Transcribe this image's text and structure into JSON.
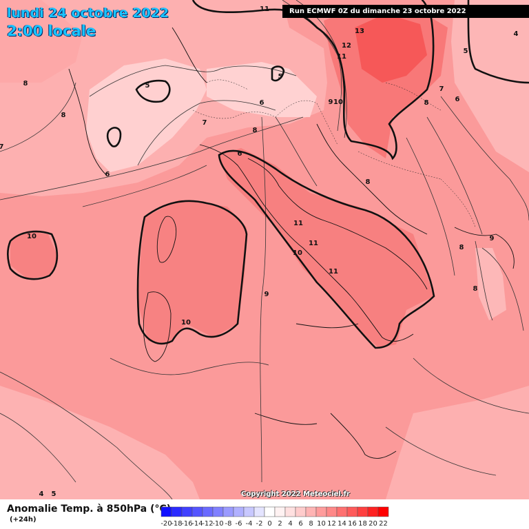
{
  "header": {
    "date": "lundi 24 octobre 2022",
    "time": "2:00 locale",
    "run": "Run ECMWF 0Z du dimanche 23 octobre 2022"
  },
  "footer": {
    "parameter": "Anomalie Temp. à 850hPa (°C)",
    "range": "(+24h)",
    "copyright": "Copyright 2022 Meteociel.fr"
  },
  "scale": {
    "ticks": [
      "-20",
      "-18",
      "-16",
      "-14",
      "-12",
      "-10",
      "-8",
      "-6",
      "-4",
      "-2",
      "0",
      "2",
      "4",
      "6",
      "8",
      "10",
      "12",
      "14",
      "16",
      "18",
      "20",
      "22"
    ],
    "colors": [
      "#1010ff",
      "#2a2aff",
      "#4040ff",
      "#5555ff",
      "#6a6aff",
      "#8080ff",
      "#9a9aff",
      "#b0b0ff",
      "#c8c8ff",
      "#e4e4ff",
      "#ffffff",
      "#fff2f2",
      "#ffe0e0",
      "#ffcccc",
      "#ffb4b4",
      "#ff9c9c",
      "#ff8888",
      "#ff7070",
      "#ff5a5a",
      "#ff4040",
      "#ff2222",
      "#ff0000"
    ]
  },
  "map": {
    "colors": {
      "base": "#fb9a9a",
      "warm": "#f87e7e",
      "hot": "#f65c5c",
      "cool": "#fdbcbc",
      "cold": "#ffd6d6"
    },
    "contour_labels": [
      "11",
      "13",
      "12",
      "11",
      "10",
      "9",
      "8",
      "8",
      "7",
      "6",
      "6",
      "5",
      "5",
      "8",
      "8",
      "7",
      "6",
      "6",
      "8",
      "10",
      "10",
      "11",
      "11",
      "10",
      "11",
      "9",
      "8",
      "9",
      "8",
      "7",
      "5",
      "4",
      "5",
      "4"
    ]
  }
}
